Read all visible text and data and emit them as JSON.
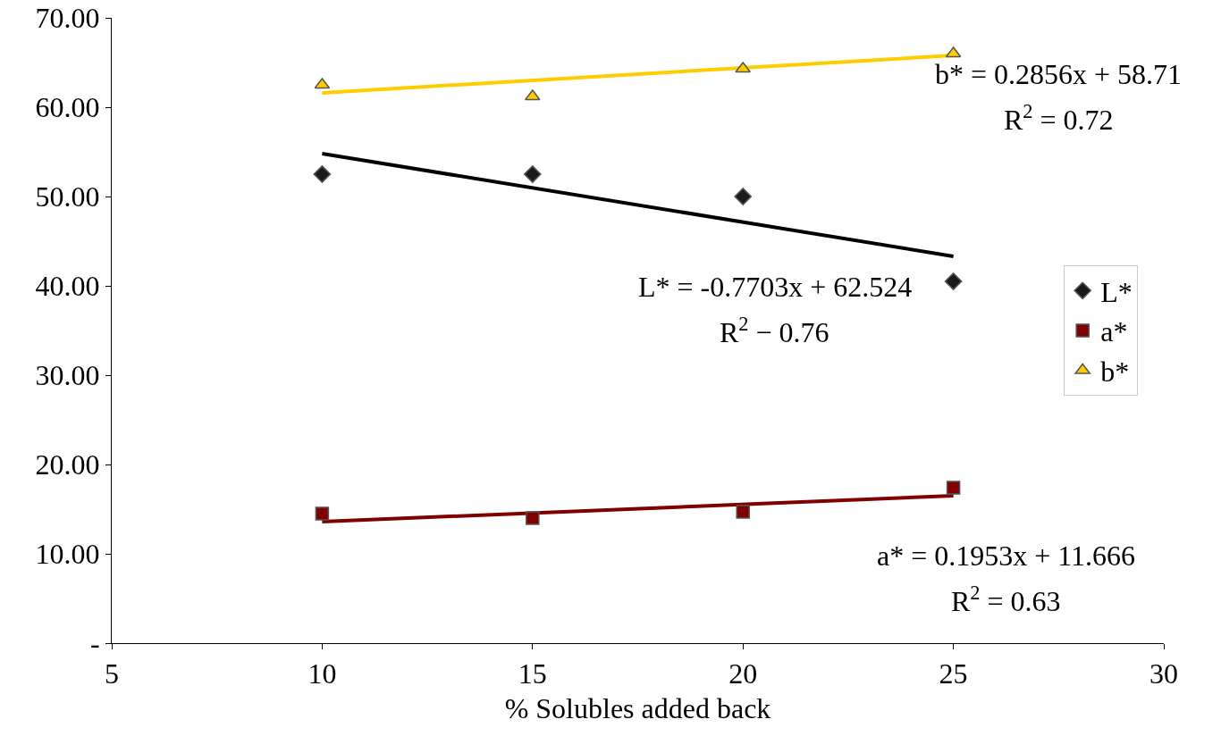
{
  "chart_data": {
    "type": "scatter",
    "xlabel": "% Solubles added back",
    "xlim": [
      5,
      30
    ],
    "xticks": [
      5,
      10,
      15,
      20,
      25,
      30
    ],
    "ylim": [
      0,
      70
    ],
    "yticks": [
      {
        "value": 0,
        "label": "-"
      },
      {
        "value": 10,
        "label": "10.00"
      },
      {
        "value": 20,
        "label": "20.00"
      },
      {
        "value": 30,
        "label": "30.00"
      },
      {
        "value": 40,
        "label": "40.00"
      },
      {
        "value": 50,
        "label": "50.00"
      },
      {
        "value": 60,
        "label": "60.00"
      },
      {
        "value": 70,
        "label": "70.00"
      }
    ],
    "grid": false,
    "legend": "right",
    "series": [
      {
        "name": "L*",
        "color": "#1a1a1a",
        "marker": "diamond",
        "x": [
          10,
          15,
          20,
          25
        ],
        "values": [
          52.5,
          52.5,
          50.0,
          40.5
        ]
      },
      {
        "name": "a*",
        "color": "#7f0000",
        "marker": "square",
        "x": [
          10,
          15,
          20,
          25
        ],
        "values": [
          14.5,
          14.0,
          14.7,
          17.4
        ]
      },
      {
        "name": "b*",
        "color": "#ffcc00",
        "marker": "triangle",
        "x": [
          10,
          15,
          20,
          25
        ],
        "values": [
          62.5,
          61.2,
          64.3,
          66.0
        ]
      },
      {
        "type": "line",
        "color": "#000000",
        "marker": "none",
        "line_style": "solid",
        "x": [
          10,
          25
        ],
        "values": [
          54.8,
          43.3
        ]
      },
      {
        "type": "line",
        "color": "#800000",
        "marker": "none",
        "line_style": "solid",
        "x": [
          10,
          25
        ],
        "values": [
          13.6,
          16.5
        ]
      },
      {
        "type": "line",
        "color": "#ffcc00",
        "marker": "none",
        "line_style": "solid",
        "x": [
          10,
          25
        ],
        "values": [
          61.6,
          65.8
        ]
      }
    ],
    "annotations": [
      "b* = 0.2856x + 58.71",
      "R$^{2}$ = 0.72",
      "L* = -0.7703x + 62.524",
      "R$^{2}$ − 0.76",
      "a* = 0.1953x + 11.666",
      "R$^{2}$ = 0.63"
    ]
  }
}
